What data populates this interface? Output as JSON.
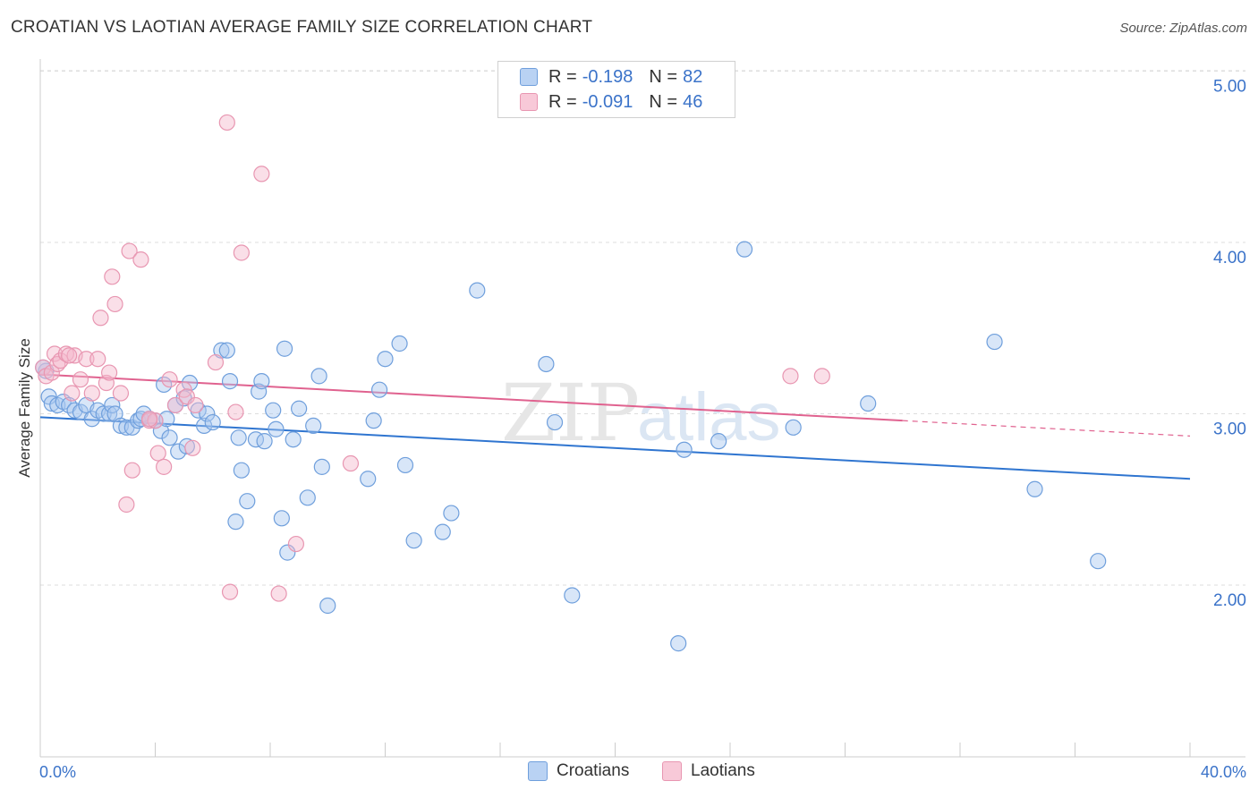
{
  "title": "CROATIAN VS LAOTIAN AVERAGE FAMILY SIZE CORRELATION CHART",
  "source": "Source: ZipAtlas.com",
  "watermark": {
    "zip": "ZIP",
    "atlas": "atlas"
  },
  "legend": {
    "r_label": "R =",
    "n_label": "N =",
    "series": [
      {
        "r": "-0.198",
        "n": "82"
      },
      {
        "r": "-0.091",
        "n": "46"
      }
    ]
  },
  "bottom_legend": [
    "Croatians",
    "Laotians"
  ],
  "colors": {
    "croatians_fill": "#a9c8f0",
    "croatians_stroke": "#6f9fdc",
    "croatians_line": "#2f75d0",
    "laotians_fill": "#f5b8cc",
    "laotians_stroke": "#e896b1",
    "laotians_line": "#e0628f",
    "tick_label": "#3b73c9"
  },
  "chart_data": {
    "type": "scatter",
    "ylabel": "Average Family Size",
    "x_tick_labels": [
      "0.0%",
      "40.0%"
    ],
    "y_tick_labels": [
      "2.00",
      "3.00",
      "4.00",
      "5.00"
    ],
    "xlim": [
      0,
      40
    ],
    "ylim": [
      1.0,
      5.1
    ],
    "y_ticks": [
      2,
      3,
      4,
      5
    ],
    "grid": "horizontal dashed",
    "series": [
      {
        "name": "Croatians",
        "trend": {
          "x": [
            0,
            40
          ],
          "y": [
            2.98,
            2.62
          ]
        },
        "points": [
          [
            0.2,
            3.25
          ],
          [
            0.3,
            3.1
          ],
          [
            0.4,
            3.06
          ],
          [
            0.6,
            3.05
          ],
          [
            0.8,
            3.07
          ],
          [
            1.0,
            3.05
          ],
          [
            1.2,
            3.02
          ],
          [
            1.4,
            3.01
          ],
          [
            1.6,
            3.05
          ],
          [
            1.8,
            2.97
          ],
          [
            2.0,
            3.02
          ],
          [
            2.2,
            3.0
          ],
          [
            2.4,
            3.0
          ],
          [
            2.5,
            3.05
          ],
          [
            2.6,
            3.0
          ],
          [
            2.8,
            2.93
          ],
          [
            3.0,
            2.92
          ],
          [
            3.2,
            2.92
          ],
          [
            3.4,
            2.96
          ],
          [
            3.5,
            2.97
          ],
          [
            3.6,
            3.0
          ],
          [
            3.8,
            2.97
          ],
          [
            4.0,
            2.96
          ],
          [
            4.2,
            2.9
          ],
          [
            4.3,
            3.17
          ],
          [
            4.4,
            2.97
          ],
          [
            4.5,
            2.86
          ],
          [
            4.7,
            3.05
          ],
          [
            4.8,
            2.78
          ],
          [
            5.0,
            3.09
          ],
          [
            5.1,
            2.81
          ],
          [
            5.2,
            3.18
          ],
          [
            5.5,
            3.02
          ],
          [
            5.7,
            2.93
          ],
          [
            5.8,
            3.0
          ],
          [
            6.0,
            2.95
          ],
          [
            6.3,
            3.37
          ],
          [
            6.5,
            3.37
          ],
          [
            6.6,
            3.19
          ],
          [
            6.8,
            2.37
          ],
          [
            6.9,
            2.86
          ],
          [
            7.0,
            2.67
          ],
          [
            7.2,
            2.49
          ],
          [
            7.5,
            2.85
          ],
          [
            7.6,
            3.13
          ],
          [
            7.7,
            3.19
          ],
          [
            7.8,
            2.84
          ],
          [
            8.1,
            3.02
          ],
          [
            8.2,
            2.91
          ],
          [
            8.4,
            2.39
          ],
          [
            8.5,
            3.38
          ],
          [
            8.6,
            2.19
          ],
          [
            8.8,
            2.85
          ],
          [
            9.0,
            3.03
          ],
          [
            9.3,
            2.51
          ],
          [
            9.5,
            2.93
          ],
          [
            9.7,
            3.22
          ],
          [
            9.8,
            2.69
          ],
          [
            10.0,
            1.88
          ],
          [
            11.4,
            2.62
          ],
          [
            11.6,
            2.96
          ],
          [
            11.8,
            3.14
          ],
          [
            12.0,
            3.32
          ],
          [
            12.5,
            3.41
          ],
          [
            12.7,
            2.7
          ],
          [
            13.0,
            2.26
          ],
          [
            14.0,
            2.31
          ],
          [
            14.3,
            2.42
          ],
          [
            15.2,
            3.72
          ],
          [
            17.6,
            3.29
          ],
          [
            17.9,
            2.95
          ],
          [
            18.5,
            1.94
          ],
          [
            22.2,
            1.66
          ],
          [
            22.4,
            2.79
          ],
          [
            23.6,
            2.84
          ],
          [
            24.5,
            3.96
          ],
          [
            26.2,
            2.92
          ],
          [
            28.8,
            3.06
          ],
          [
            33.2,
            3.42
          ],
          [
            34.6,
            2.56
          ],
          [
            36.8,
            2.14
          ],
          [
            0.1,
            3.27
          ]
        ]
      },
      {
        "name": "Laotians",
        "trend": {
          "x": [
            0,
            30
          ],
          "y": [
            3.23,
            2.96
          ]
        },
        "trend_dashed": {
          "x": [
            30,
            40
          ],
          "y": [
            2.96,
            2.87
          ]
        },
        "points": [
          [
            0.1,
            3.27
          ],
          [
            0.2,
            3.22
          ],
          [
            0.4,
            3.24
          ],
          [
            0.5,
            3.35
          ],
          [
            0.6,
            3.29
          ],
          [
            0.7,
            3.31
          ],
          [
            0.9,
            3.35
          ],
          [
            1.1,
            3.12
          ],
          [
            1.2,
            3.34
          ],
          [
            1.4,
            3.2
          ],
          [
            1.6,
            3.32
          ],
          [
            1.8,
            3.12
          ],
          [
            2.1,
            3.56
          ],
          [
            2.3,
            3.18
          ],
          [
            2.4,
            3.24
          ],
          [
            2.5,
            3.8
          ],
          [
            2.6,
            3.64
          ],
          [
            2.8,
            3.12
          ],
          [
            3.0,
            2.47
          ],
          [
            3.1,
            3.95
          ],
          [
            3.2,
            2.67
          ],
          [
            3.5,
            3.9
          ],
          [
            3.8,
            2.96
          ],
          [
            4.0,
            2.96
          ],
          [
            4.1,
            2.77
          ],
          [
            4.3,
            2.69
          ],
          [
            4.5,
            3.2
          ],
          [
            4.7,
            3.05
          ],
          [
            5.0,
            3.14
          ],
          [
            5.1,
            3.1
          ],
          [
            5.3,
            2.8
          ],
          [
            5.4,
            3.05
          ],
          [
            6.1,
            3.3
          ],
          [
            6.5,
            4.7
          ],
          [
            6.6,
            1.96
          ],
          [
            6.8,
            3.01
          ],
          [
            7.0,
            3.94
          ],
          [
            7.7,
            4.4
          ],
          [
            8.3,
            1.95
          ],
          [
            8.9,
            2.24
          ],
          [
            10.8,
            2.71
          ],
          [
            26.1,
            3.22
          ],
          [
            27.2,
            3.22
          ],
          [
            2.0,
            3.32
          ],
          [
            1.0,
            3.34
          ],
          [
            3.8,
            2.97
          ]
        ]
      }
    ]
  }
}
